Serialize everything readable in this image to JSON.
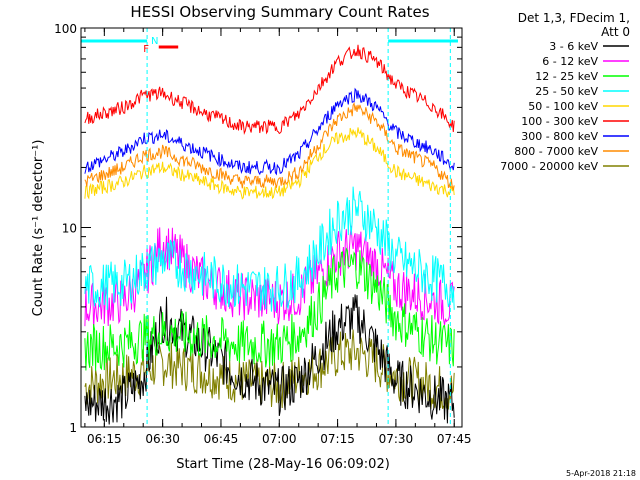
{
  "chart_data": {
    "type": "line",
    "title": "HESSI Observing Summary Count Rates",
    "xlabel": "Start Time (28-May-16 06:09:02)",
    "ylabel": "Count Rate (s⁻¹ detector⁻¹)",
    "x_ticks": [
      "06:15",
      "06:30",
      "06:45",
      "07:00",
      "07:15",
      "07:30",
      "07:45"
    ],
    "y_ticks": [
      "1",
      "10",
      "100"
    ],
    "xlim": [
      "06:09",
      "07:47"
    ],
    "ylim": [
      1,
      100
    ],
    "y_scale": "log",
    "grid": false,
    "legend_position": "right",
    "legend_header": [
      "Det 1,3, FDecim 1,",
      "Att 0"
    ],
    "footer_date": "5-Apr-2018 21:18",
    "flags": [
      {
        "label": "F",
        "color": "#ff0000"
      },
      {
        "label": "N",
        "color": "#00ffff"
      }
    ],
    "series": [
      {
        "name": "3 - 6 keV",
        "color": "#000000",
        "x": [
          "06:10",
          "06:20",
          "06:25",
          "06:30",
          "06:40",
          "06:50",
          "07:00",
          "07:05",
          "07:10",
          "07:15",
          "07:20",
          "07:25",
          "07:30",
          "07:40",
          "07:45"
        ],
        "y": [
          1.3,
          1.4,
          1.8,
          3.5,
          2.6,
          1.8,
          1.5,
          1.7,
          2.3,
          3.2,
          3.6,
          2.5,
          1.7,
          1.4,
          1.3
        ]
      },
      {
        "name": "6 - 12 keV",
        "color": "#ff00ff",
        "x": [
          "06:10",
          "06:20",
          "06:25",
          "06:30",
          "06:40",
          "06:50",
          "07:00",
          "07:05",
          "07:10",
          "07:15",
          "07:20",
          "07:25",
          "07:30",
          "07:40",
          "07:45"
        ],
        "y": [
          4,
          4.3,
          5.5,
          8.5,
          5.5,
          4.5,
          4.3,
          4.6,
          5.8,
          7.5,
          8,
          6.5,
          5,
          4.3,
          4
        ]
      },
      {
        "name": "12 - 25 keV",
        "color": "#00ff00",
        "x": [
          "06:10",
          "06:20",
          "06:25",
          "06:30",
          "06:40",
          "06:50",
          "07:00",
          "07:05",
          "07:10",
          "07:15",
          "07:20",
          "07:25",
          "07:30",
          "07:40",
          "07:45"
        ],
        "y": [
          2.5,
          2.6,
          2.8,
          3,
          2.8,
          2.6,
          2.6,
          2.9,
          4,
          6,
          6.5,
          5,
          3.5,
          2.7,
          2.5
        ]
      },
      {
        "name": "25 - 50 keV",
        "color": "#00ffff",
        "x": [
          "06:10",
          "06:20",
          "06:25",
          "06:30",
          "06:40",
          "06:50",
          "07:00",
          "07:05",
          "07:10",
          "07:15",
          "07:20",
          "07:25",
          "07:30",
          "07:40",
          "07:45"
        ],
        "y": [
          5,
          5.2,
          6,
          7,
          5.8,
          5,
          5,
          5.5,
          7.5,
          11,
          12.5,
          10,
          7,
          5.5,
          5
        ]
      },
      {
        "name": "50 - 100 keV",
        "color": "#ffd700",
        "x": [
          "06:10",
          "06:20",
          "06:25",
          "06:30",
          "06:40",
          "06:50",
          "07:00",
          "07:05",
          "07:10",
          "07:15",
          "07:20",
          "07:25",
          "07:30",
          "07:40",
          "07:45"
        ],
        "y": [
          15,
          17,
          19,
          20,
          17,
          15,
          15,
          17,
          23,
          28,
          30,
          25,
          19,
          16,
          15
        ]
      },
      {
        "name": "100 - 300 keV",
        "color": "#ff0000",
        "x": [
          "06:10",
          "06:20",
          "06:25",
          "06:30",
          "06:40",
          "06:50",
          "07:00",
          "07:05",
          "07:10",
          "07:15",
          "07:20",
          "07:25",
          "07:30",
          "07:40",
          "07:45"
        ],
        "y": [
          35,
          40,
          46,
          47,
          38,
          32,
          32,
          37,
          50,
          68,
          78,
          68,
          52,
          40,
          32
        ]
      },
      {
        "name": "300 - 800 keV",
        "color": "#0000ff",
        "x": [
          "06:10",
          "06:20",
          "06:25",
          "06:30",
          "06:40",
          "06:50",
          "07:00",
          "07:05",
          "07:10",
          "07:15",
          "07:20",
          "07:25",
          "07:30",
          "07:40",
          "07:45"
        ],
        "y": [
          20,
          24,
          28,
          29,
          24,
          20,
          20,
          23,
          31,
          42,
          47,
          40,
          30,
          24,
          20
        ]
      },
      {
        "name": "800 - 7000 keV",
        "color": "#ff8c00",
        "x": [
          "06:10",
          "06:20",
          "06:25",
          "06:30",
          "06:40",
          "06:50",
          "07:00",
          "07:05",
          "07:10",
          "07:15",
          "07:20",
          "07:25",
          "07:30",
          "07:40",
          "07:45"
        ],
        "y": [
          17,
          20,
          23,
          24,
          20,
          17,
          17,
          19,
          26,
          35,
          40,
          34,
          25,
          20,
          16
        ]
      },
      {
        "name": "7000 - 20000 keV",
        "color": "#808000",
        "x": [
          "06:10",
          "06:20",
          "06:25",
          "06:30",
          "06:40",
          "06:50",
          "07:00",
          "07:05",
          "07:10",
          "07:15",
          "07:20",
          "07:25",
          "07:30",
          "07:40",
          "07:45"
        ],
        "y": [
          1.6,
          1.8,
          1.9,
          2.1,
          1.9,
          1.7,
          1.6,
          1.8,
          2,
          2.3,
          2.4,
          2.1,
          1.8,
          1.6,
          1.5
        ]
      }
    ]
  }
}
